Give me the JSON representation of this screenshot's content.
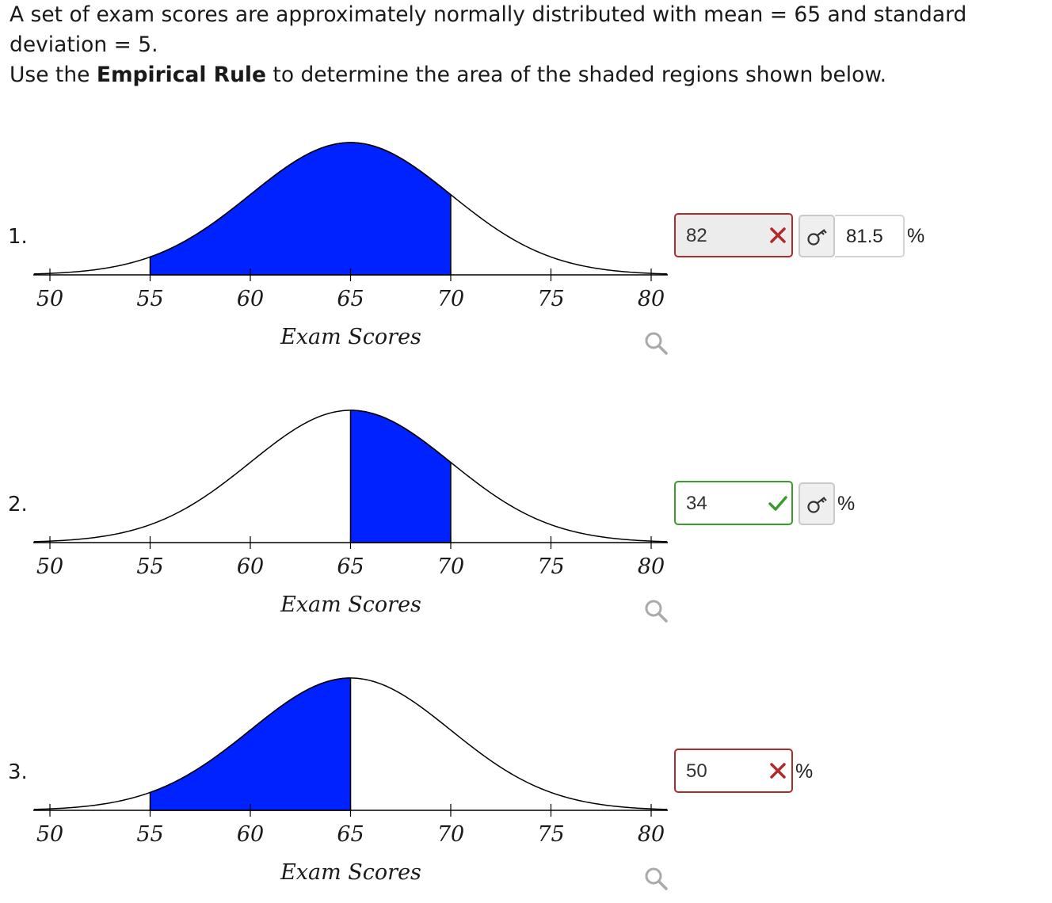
{
  "intro": {
    "line1": "A set of exam scores are approximately normally distributed with mean = 65 and standard deviation = 5.",
    "line2_pre": "Use the ",
    "line2_bold": "Empirical Rule",
    "line2_post": " to determine the area of the shaded regions shown below."
  },
  "colors": {
    "shade": "#0022ff",
    "wrong": "#b02a2a",
    "right": "#3d9a2f"
  },
  "problems": [
    {
      "number": "1.",
      "answer": "82",
      "status": "wrong",
      "key_answer": "81.5",
      "unit": "%"
    },
    {
      "number": "2.",
      "answer": "34",
      "status": "right",
      "key_answer": "",
      "unit": "%"
    },
    {
      "number": "3.",
      "answer": "50",
      "status": "wrong",
      "unit": "%"
    }
  ],
  "icons": {
    "wrong": "x-mark-icon",
    "right": "check-mark-icon",
    "key": "key-icon",
    "zoom": "magnifier-icon"
  },
  "chart_data": [
    {
      "type": "area",
      "mean": 65,
      "sd": 5,
      "xlabel": "Exam Scores",
      "ticks": [
        50,
        55,
        60,
        65,
        70,
        75,
        80
      ],
      "xlim": [
        50,
        80
      ],
      "shaded": [
        55,
        70
      ]
    },
    {
      "type": "area",
      "mean": 65,
      "sd": 5,
      "xlabel": "Exam Scores",
      "ticks": [
        50,
        55,
        60,
        65,
        70,
        75,
        80
      ],
      "xlim": [
        50,
        80
      ],
      "shaded": [
        65,
        70
      ]
    },
    {
      "type": "area",
      "mean": 65,
      "sd": 5,
      "xlabel": "Exam Scores",
      "ticks": [
        50,
        55,
        60,
        65,
        70,
        75,
        80
      ],
      "xlim": [
        50,
        80
      ],
      "shaded": [
        55,
        65
      ]
    }
  ]
}
